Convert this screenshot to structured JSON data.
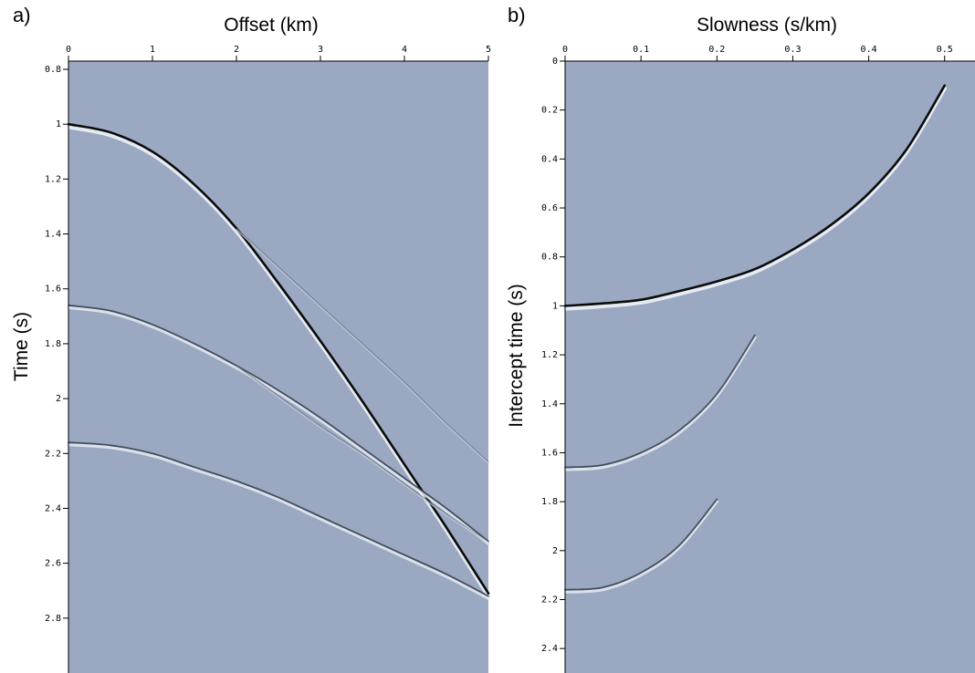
{
  "chart_data": [
    {
      "type": "line",
      "panel_label": "a)",
      "xlabel": "Offset (km)",
      "ylabel": "Time (s)",
      "x_axis_position": "top",
      "y_axis_inverted": true,
      "xlim": [
        0,
        5
      ],
      "ylim": [
        0.77,
        3.0
      ],
      "xticks": [
        0,
        1,
        2,
        3,
        4,
        5
      ],
      "yticks": [
        0.8,
        1,
        1.2,
        1.4,
        1.6,
        1.8,
        2,
        2.2,
        2.4,
        2.6,
        2.8
      ],
      "ytick_labels": [
        "0.8",
        "1",
        "1.2",
        "1.4",
        "1.6",
        "1.8",
        "2",
        "2.2",
        "2.4",
        "2.6",
        "2.8"
      ],
      "grid": false,
      "background_color": "#9aa9c1",
      "series": [
        {
          "x": [
            0,
            0.5,
            1,
            1.5,
            2,
            2.5,
            3,
            3.5,
            4,
            4.5,
            5
          ],
          "y": [
            1.0,
            1.03,
            1.1,
            1.22,
            1.38,
            1.58,
            1.79,
            2.01,
            2.24,
            2.47,
            2.71
          ],
          "strength": "strong"
        },
        {
          "x": [
            0,
            0.5,
            1,
            1.5,
            2,
            2.5,
            3,
            3.5,
            4,
            4.5,
            5
          ],
          "y": [
            1.66,
            1.68,
            1.73,
            1.8,
            1.88,
            1.97,
            2.07,
            2.18,
            2.29,
            2.4,
            2.52
          ],
          "strength": "medium"
        },
        {
          "x": [
            0,
            0.5,
            1,
            1.5,
            2,
            2.5,
            3,
            3.5,
            4,
            4.5,
            5
          ],
          "y": [
            2.16,
            2.17,
            2.2,
            2.25,
            2.3,
            2.36,
            2.43,
            2.5,
            2.57,
            2.64,
            2.72
          ],
          "strength": "medium"
        },
        {
          "x": [
            2,
            2.5,
            3,
            3.5,
            4,
            4.5,
            5
          ],
          "y": [
            1.38,
            1.52,
            1.66,
            1.8,
            1.94,
            2.09,
            2.23
          ],
          "strength": "faint"
        },
        {
          "x": [
            2,
            2.5,
            3,
            3.5,
            4,
            4.5,
            5
          ],
          "y": [
            1.88,
            1.99,
            2.1,
            2.2,
            2.31,
            2.42,
            2.52
          ],
          "strength": "faint"
        }
      ]
    },
    {
      "type": "line",
      "panel_label": "b)",
      "xlabel": "Slowness (s/km)",
      "ylabel": "Intercept time (s)",
      "x_axis_position": "top",
      "y_axis_inverted": true,
      "xlim": [
        0,
        0.54
      ],
      "ylim": [
        0,
        2.5
      ],
      "xticks": [
        0,
        0.1,
        0.2,
        0.3,
        0.4,
        0.5
      ],
      "xtick_labels": [
        "0",
        "0.1",
        "0.2",
        "0.3",
        "0.4",
        "0.5"
      ],
      "yticks": [
        0,
        0.2,
        0.4,
        0.6,
        0.8,
        1,
        1.2,
        1.4,
        1.6,
        1.8,
        2,
        2.2,
        2.4
      ],
      "ytick_labels": [
        "0",
        "0.2",
        "0.4",
        "0.6",
        "0.8",
        "1",
        "1.2",
        "1.4",
        "1.6",
        "1.8",
        "2",
        "2.2",
        "2.4"
      ],
      "grid": false,
      "background_color": "#9aa9c1",
      "series": [
        {
          "x": [
            0,
            0.05,
            0.1,
            0.15,
            0.2,
            0.25,
            0.3,
            0.35,
            0.4,
            0.45,
            0.5
          ],
          "y": [
            1.0,
            0.99,
            0.975,
            0.94,
            0.9,
            0.85,
            0.77,
            0.67,
            0.54,
            0.36,
            0.1
          ],
          "strength": "strong"
        },
        {
          "x": [
            0,
            0.05,
            0.1,
            0.15,
            0.2,
            0.25
          ],
          "y": [
            1.66,
            1.65,
            1.6,
            1.51,
            1.36,
            1.12
          ],
          "strength": "medium"
        },
        {
          "x": [
            0,
            0.05,
            0.1,
            0.15,
            0.2
          ],
          "y": [
            2.16,
            2.15,
            2.09,
            1.98,
            1.79
          ],
          "strength": "medium"
        }
      ]
    }
  ]
}
